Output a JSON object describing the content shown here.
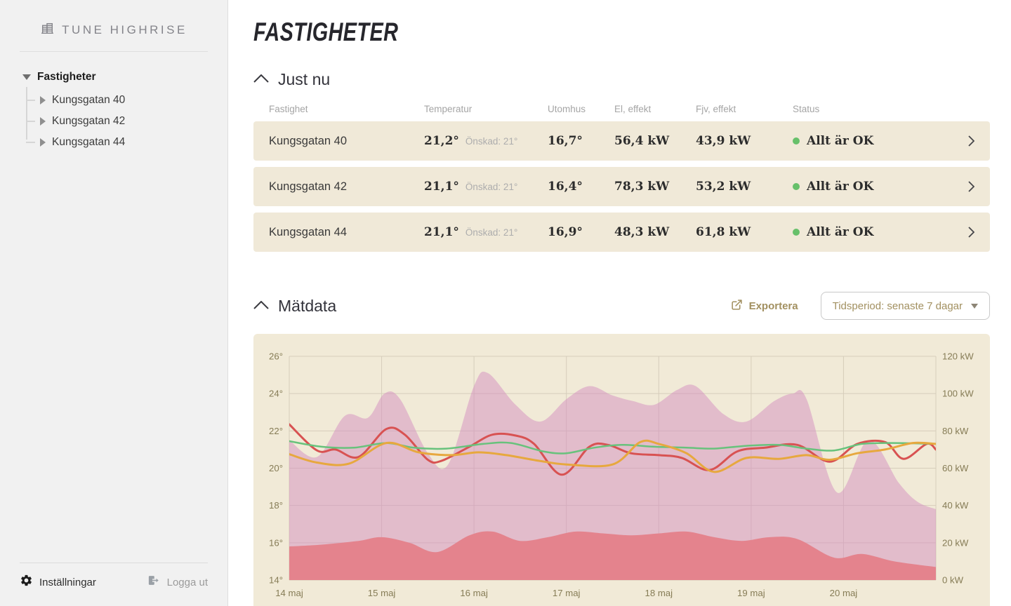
{
  "brand": {
    "name": "TUNE HIGHRISE"
  },
  "sidebar": {
    "tree": {
      "root": "Fastigheter",
      "items": [
        "Kungsgatan 40",
        "Kungsgatan 42",
        "Kungsgatan 44"
      ]
    },
    "footer": {
      "settings": "Inställningar",
      "logout": "Logga ut"
    }
  },
  "page": {
    "title": "Fastigheter"
  },
  "just_nu": {
    "heading": "Just nu",
    "columns": [
      "Fastighet",
      "Temperatur",
      "Utomhus",
      "El, effekt",
      "Fjv, effekt",
      "Status"
    ],
    "rows": [
      {
        "name": "Kungsgatan 40",
        "temp": "21,2°",
        "wanted": "Önskad: 21°",
        "outdoor": "16,7°",
        "el": "56,4 kW",
        "fjv": "43,9 kW",
        "status": "Allt är OK"
      },
      {
        "name": "Kungsgatan 42",
        "temp": "21,1°",
        "wanted": "Önskad: 21°",
        "outdoor": "16,4°",
        "el": "78,3 kW",
        "fjv": "53,2 kW",
        "status": "Allt är OK"
      },
      {
        "name": "Kungsgatan 44",
        "temp": "21,1°",
        "wanted": "Önskad: 21°",
        "outdoor": "16,9°",
        "el": "48,3 kW",
        "fjv": "61,8 kW",
        "status": "Allt är OK"
      }
    ]
  },
  "matdata": {
    "heading": "Mätdata",
    "export_label": "Exportera",
    "period_label": "Tidsperiod: senaste 7 dagar"
  },
  "colors": {
    "accent_tan": "#a29060",
    "status_green": "#67c06a",
    "row_bg": "#f0e9d8",
    "chart_bg": "#f1ead7"
  },
  "chart_data": {
    "type": "area+line",
    "grid": true,
    "x": {
      "labels": [
        "14 maj",
        "15 maj",
        "16 maj",
        "17 maj",
        "18 maj",
        "19 maj",
        "20 maj"
      ],
      "domain_days": [
        0,
        7
      ]
    },
    "y_left": {
      "unit": "°",
      "min": 14,
      "max": 26,
      "ticks": [
        26,
        24,
        22,
        20,
        18,
        16,
        14
      ]
    },
    "y_right": {
      "unit": " kW",
      "min": 0,
      "max": 120,
      "ticks": [
        120,
        100,
        80,
        60,
        40,
        20,
        0
      ]
    },
    "axis_text_color": "#867c56",
    "grid_color": "#d6cdbb",
    "series": [
      {
        "name": "total-effekt-area",
        "type": "area",
        "axis": "right",
        "color": "rgba(211,142,191,0.5)",
        "points": [
          [
            0,
            75
          ],
          [
            0.3,
            66
          ],
          [
            0.6,
            88
          ],
          [
            0.85,
            87
          ],
          [
            1.03,
            100
          ],
          [
            1.2,
            97
          ],
          [
            1.5,
            68
          ],
          [
            1.72,
            62
          ],
          [
            2.0,
            104
          ],
          [
            2.15,
            111
          ],
          [
            2.45,
            94
          ],
          [
            2.72,
            85
          ],
          [
            3.0,
            97
          ],
          [
            3.25,
            104
          ],
          [
            3.5,
            99
          ],
          [
            3.72,
            96
          ],
          [
            3.95,
            94
          ],
          [
            4.2,
            102
          ],
          [
            4.4,
            104
          ],
          [
            4.7,
            89
          ],
          [
            4.95,
            85
          ],
          [
            5.25,
            96
          ],
          [
            5.45,
            100
          ],
          [
            5.6,
            97
          ],
          [
            5.93,
            47
          ],
          [
            6.27,
            75
          ],
          [
            6.6,
            52
          ],
          [
            6.8,
            42
          ],
          [
            7,
            38
          ]
        ]
      },
      {
        "name": "bas-effekt-area",
        "type": "area",
        "axis": "right",
        "color": "#e4838d",
        "points": [
          [
            0,
            18
          ],
          [
            0.35,
            19
          ],
          [
            0.75,
            21
          ],
          [
            1.0,
            23
          ],
          [
            1.3,
            20
          ],
          [
            1.6,
            15
          ],
          [
            1.95,
            24
          ],
          [
            2.2,
            26
          ],
          [
            2.5,
            21
          ],
          [
            2.8,
            23
          ],
          [
            3.1,
            26
          ],
          [
            3.4,
            25
          ],
          [
            3.7,
            24
          ],
          [
            4.0,
            25
          ],
          [
            4.3,
            26
          ],
          [
            4.6,
            23
          ],
          [
            4.9,
            21
          ],
          [
            5.2,
            23
          ],
          [
            5.5,
            22
          ],
          [
            5.9,
            12
          ],
          [
            6.2,
            14
          ],
          [
            6.55,
            10
          ],
          [
            7,
            7
          ]
        ]
      },
      {
        "name": "temperatur-red-line",
        "type": "line",
        "axis": "left",
        "color": "#d85252",
        "width": 3,
        "points": [
          [
            0,
            22.35
          ],
          [
            0.3,
            20.95
          ],
          [
            0.5,
            21.0
          ],
          [
            0.75,
            20.6
          ],
          [
            1.05,
            22.1
          ],
          [
            1.25,
            21.8
          ],
          [
            1.5,
            20.45
          ],
          [
            1.65,
            20.4
          ],
          [
            1.95,
            21.15
          ],
          [
            2.2,
            21.8
          ],
          [
            2.45,
            21.75
          ],
          [
            2.65,
            21.3
          ],
          [
            2.95,
            19.65
          ],
          [
            3.25,
            21.15
          ],
          [
            3.45,
            21.25
          ],
          [
            3.7,
            20.8
          ],
          [
            4.0,
            20.7
          ],
          [
            4.25,
            20.55
          ],
          [
            4.55,
            19.9
          ],
          [
            4.85,
            20.9
          ],
          [
            5.15,
            21.1
          ],
          [
            5.5,
            21.25
          ],
          [
            5.85,
            20.35
          ],
          [
            6.15,
            21.3
          ],
          [
            6.45,
            21.4
          ],
          [
            6.65,
            20.5
          ],
          [
            6.9,
            21.3
          ],
          [
            7,
            21.0
          ]
        ]
      },
      {
        "name": "temperatur-green-line",
        "type": "line",
        "axis": "left",
        "color": "#68c27c",
        "width": 2.5,
        "points": [
          [
            0,
            21.45
          ],
          [
            0.35,
            21.15
          ],
          [
            0.7,
            21.1
          ],
          [
            1.05,
            21.35
          ],
          [
            1.35,
            21.1
          ],
          [
            1.7,
            21.05
          ],
          [
            2.1,
            21.3
          ],
          [
            2.4,
            21.35
          ],
          [
            2.75,
            20.9
          ],
          [
            3.0,
            20.8
          ],
          [
            3.3,
            21.1
          ],
          [
            3.6,
            21.25
          ],
          [
            3.95,
            21.15
          ],
          [
            4.3,
            21.1
          ],
          [
            4.6,
            21.05
          ],
          [
            4.95,
            21.2
          ],
          [
            5.3,
            21.25
          ],
          [
            5.6,
            21.05
          ],
          [
            5.9,
            20.95
          ],
          [
            6.2,
            21.3
          ],
          [
            6.55,
            21.35
          ],
          [
            7,
            21.3
          ]
        ]
      },
      {
        "name": "temperatur-orange-line",
        "type": "line",
        "axis": "left",
        "color": "#e7a83e",
        "width": 3,
        "points": [
          [
            0,
            20.75
          ],
          [
            0.3,
            20.3
          ],
          [
            0.65,
            20.25
          ],
          [
            1.05,
            21.35
          ],
          [
            1.4,
            20.85
          ],
          [
            1.75,
            20.7
          ],
          [
            2.05,
            20.85
          ],
          [
            2.35,
            20.7
          ],
          [
            2.7,
            20.4
          ],
          [
            3.0,
            20.2
          ],
          [
            3.5,
            20.2
          ],
          [
            3.8,
            21.4
          ],
          [
            4.0,
            21.3
          ],
          [
            4.3,
            20.8
          ],
          [
            4.6,
            19.8
          ],
          [
            4.95,
            20.55
          ],
          [
            5.3,
            20.5
          ],
          [
            5.6,
            20.7
          ],
          [
            5.85,
            20.45
          ],
          [
            6.15,
            20.8
          ],
          [
            6.45,
            21.0
          ],
          [
            6.75,
            21.35
          ],
          [
            7,
            21.3
          ]
        ]
      }
    ]
  }
}
